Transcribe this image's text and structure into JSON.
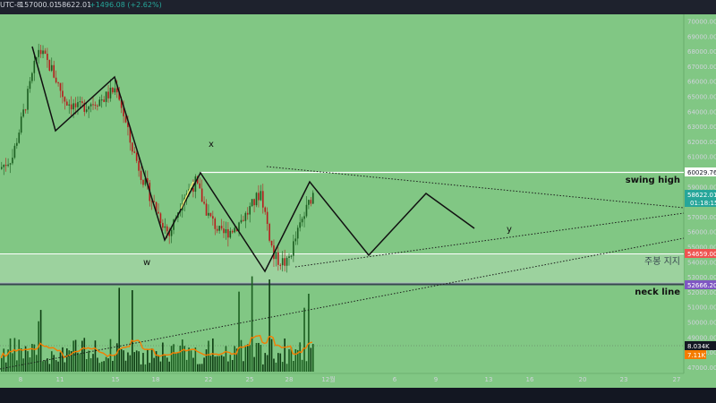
{
  "header": {
    "timezone": "UTC-8",
    "high_label": "157000.01",
    "last_label": "58622.01",
    "change_label": "+1496.08 (+2.62%)"
  },
  "price_axis": {
    "ticks": [
      "70000.00",
      "69000.00",
      "68000.00",
      "67000.00",
      "66000.00",
      "65000.00",
      "64000.00",
      "63000.00",
      "62000.00",
      "61000.00",
      "60000.00",
      "59000.00",
      "58000.00",
      "57000.00",
      "56000.00",
      "55000.00",
      "54000.00",
      "53000.00",
      "52000.00",
      "51000.00",
      "50000.00",
      "49000.00",
      "48000.00",
      "47000.00"
    ],
    "badges": {
      "swing_price": "60029.76",
      "last_price": "58622.01",
      "countdown": "01:18:15",
      "support_price": "54659.00",
      "neck_price": "52666.20",
      "volume": "8.034K",
      "volume_ma": "7.11K"
    },
    "colors": {
      "last": "#26a69a",
      "support": "#ef5350",
      "neck": "#7e57c2",
      "ma": "#f57c00"
    }
  },
  "time_axis": {
    "labels": [
      "8",
      "11",
      "15",
      "18",
      "22",
      "25",
      "28",
      "12월",
      "6",
      "9",
      "13",
      "16",
      "20",
      "23",
      "27"
    ]
  },
  "annotations": {
    "swing_high": "swing high",
    "support_zone": "주봉 지지",
    "neck_line": "neck line",
    "wave_w": "w",
    "wave_x": "x",
    "wave_y": "y"
  },
  "chart_data": {
    "type": "candlestick",
    "x": [
      "Nov 6",
      "Nov 7",
      "Nov 8",
      "Nov 9",
      "Nov 10",
      "Nov 11",
      "Nov 12",
      "Nov 13",
      "Nov 14",
      "Nov 15",
      "Nov 16",
      "Nov 17",
      "Nov 18",
      "Nov 19",
      "Nov 20",
      "Nov 21",
      "Nov 22",
      "Nov 23",
      "Nov 24",
      "Nov 25",
      "Nov 26",
      "Nov 27",
      "Nov 28",
      "Nov 29"
    ],
    "close": [
      61000,
      64500,
      68200,
      66800,
      64800,
      64200,
      64600,
      64900,
      65600,
      62000,
      59500,
      57500,
      55800,
      58300,
      59300,
      57100,
      55800,
      56300,
      57300,
      58700,
      54300,
      53900,
      56400,
      58622
    ],
    "ylim": [
      46800,
      70500
    ],
    "levels": {
      "swing_high": 60029.76,
      "support_top": 54659.0,
      "neck_line": 52666.2
    },
    "projection_path": [
      {
        "x": "Nov 18",
        "y": 55700
      },
      {
        "x": "Nov 20",
        "y": 60000
      },
      {
        "x": "Nov 26",
        "y": 53600
      },
      {
        "x": "Nov 29",
        "y": 59500
      },
      {
        "x": "Dec 4",
        "y": 54800
      },
      {
        "x": "Dec 9",
        "y": 58800
      },
      {
        "x": "Dec 12",
        "y": 56200
      }
    ],
    "volume_last": 8034,
    "volume_ma": 7110
  }
}
